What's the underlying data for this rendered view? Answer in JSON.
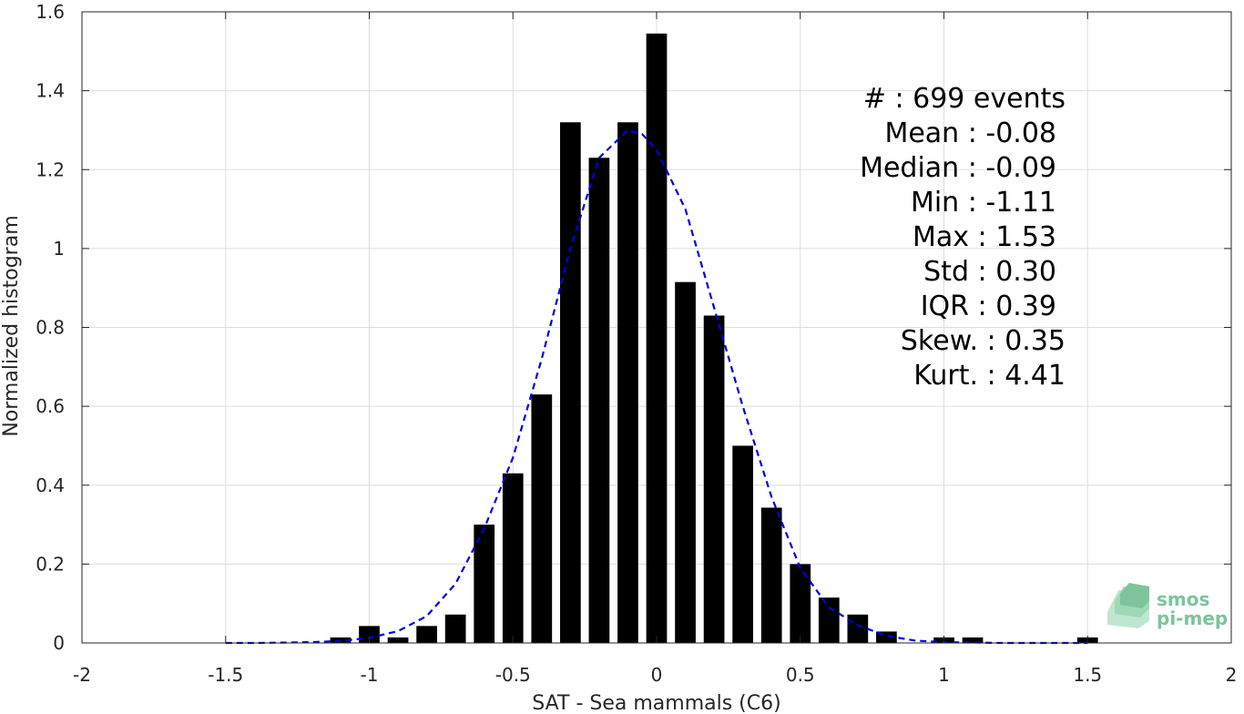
{
  "chart_data": {
    "type": "bar",
    "xlabel": "SAT - Sea mammals (C6)",
    "ylabel": "Normalized histogram",
    "xlim": [
      -2,
      2
    ],
    "ylim": [
      0,
      1.6
    ],
    "xticks": [
      -2,
      -1.5,
      -1,
      -0.5,
      0,
      0.5,
      1,
      1.5,
      2
    ],
    "xtick_labels": [
      "-2",
      "-1.5",
      "-1",
      "-0.5",
      "0",
      "0.5",
      "1",
      "1.5",
      "2"
    ],
    "yticks": [
      0,
      0.2,
      0.4,
      0.6,
      0.8,
      1,
      1.2,
      1.4,
      1.6
    ],
    "ytick_labels": [
      "0",
      "0.2",
      "0.4",
      "0.6",
      "0.8",
      "1",
      "1.2",
      "1.4",
      "1.6"
    ],
    "grid": true,
    "bar_color": "#000000",
    "bin_width": 0.1,
    "bins": [
      {
        "x": -1.1,
        "y": 0.014
      },
      {
        "x": -1.0,
        "y": 0.043
      },
      {
        "x": -0.9,
        "y": 0.014
      },
      {
        "x": -0.8,
        "y": 0.043
      },
      {
        "x": -0.7,
        "y": 0.072
      },
      {
        "x": -0.6,
        "y": 0.3
      },
      {
        "x": -0.5,
        "y": 0.43
      },
      {
        "x": -0.4,
        "y": 0.63
      },
      {
        "x": -0.3,
        "y": 1.32
      },
      {
        "x": -0.2,
        "y": 1.23
      },
      {
        "x": -0.1,
        "y": 1.32
      },
      {
        "x": 0.0,
        "y": 1.545
      },
      {
        "x": 0.1,
        "y": 0.915
      },
      {
        "x": 0.2,
        "y": 0.83
      },
      {
        "x": 0.3,
        "y": 0.5
      },
      {
        "x": 0.4,
        "y": 0.343
      },
      {
        "x": 0.5,
        "y": 0.2
      },
      {
        "x": 0.6,
        "y": 0.115
      },
      {
        "x": 0.7,
        "y": 0.072
      },
      {
        "x": 0.8,
        "y": 0.029
      },
      {
        "x": 1.0,
        "y": 0.014
      },
      {
        "x": 1.1,
        "y": 0.014
      },
      {
        "x": 1.5,
        "y": 0.014
      }
    ],
    "fit_curve": {
      "style": "dashed",
      "color": "#0000dd",
      "points": [
        [
          -1.5,
          0.0
        ],
        [
          -1.4,
          0.0
        ],
        [
          -1.3,
          0.001
        ],
        [
          -1.2,
          0.002
        ],
        [
          -1.1,
          0.005
        ],
        [
          -1.0,
          0.013
        ],
        [
          -0.9,
          0.03
        ],
        [
          -0.8,
          0.068
        ],
        [
          -0.7,
          0.15
        ],
        [
          -0.6,
          0.29
        ],
        [
          -0.5,
          0.47
        ],
        [
          -0.4,
          0.72
        ],
        [
          -0.3,
          1.0
        ],
        [
          -0.2,
          1.23
        ],
        [
          -0.1,
          1.3
        ],
        [
          -0.05,
          1.29
        ],
        [
          0.0,
          1.25
        ],
        [
          0.1,
          1.1
        ],
        [
          0.2,
          0.85
        ],
        [
          0.3,
          0.6
        ],
        [
          0.4,
          0.37
        ],
        [
          0.5,
          0.19
        ],
        [
          0.6,
          0.09
        ],
        [
          0.7,
          0.045
        ],
        [
          0.8,
          0.018
        ],
        [
          0.9,
          0.006
        ],
        [
          1.0,
          0.002
        ],
        [
          1.2,
          0.0
        ],
        [
          1.5,
          0.0
        ]
      ]
    },
    "stats_text": [
      "#  : 699 events",
      "Mean : -0.08",
      "Median : -0.09",
      "Min : -1.11",
      "Max : 1.53",
      "Std : 0.30",
      "IQR : 0.39",
      "Skew. : 0.35",
      "Kurt. : 4.41"
    ]
  },
  "logo": {
    "line1": "smos",
    "line2": "pi-mep"
  }
}
